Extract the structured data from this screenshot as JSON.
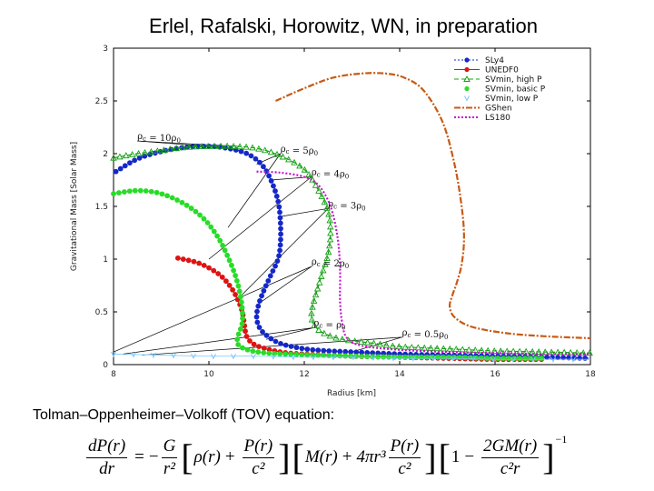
{
  "slide": {
    "title": "Erlel, Rafalski, Horowitz, WN, in preparation",
    "equation_caption": "Tolman–Oppenheimer–Volkoff (TOV) equation:"
  },
  "chart_data": {
    "type": "scatter",
    "title": "",
    "xlabel": "Radius [km]",
    "ylabel": "Gravitational Mass [Solar Mass]",
    "xlim": [
      8,
      18
    ],
    "ylim": [
      0,
      3
    ],
    "xticks": [
      8,
      10,
      12,
      14,
      16,
      18
    ],
    "yticks": [
      0,
      0.5,
      1,
      1.5,
      2,
      2.5,
      3
    ],
    "xtick_labels": [
      "8",
      "10",
      "12",
      "14",
      "16",
      "18"
    ],
    "ytick_labels": [
      "0",
      "0.5",
      "1",
      "1.5",
      "2",
      "2.5",
      "3"
    ],
    "grid": false,
    "legend_position": "top-right",
    "series": [
      {
        "name": "SLy4",
        "color": "#1428c8",
        "marker": "circle-filled",
        "style": "dotted",
        "x": [
          8.05,
          8.5,
          9.0,
          9.5,
          10.0,
          10.4,
          10.8,
          11.1,
          11.3,
          11.45,
          11.5,
          11.5,
          11.45,
          11.3,
          11.15,
          11.05,
          11.0,
          11.05,
          11.2,
          11.5,
          12.0,
          12.5,
          13.0,
          14.0,
          15.0,
          16.0,
          17.0,
          18.0
        ],
        "y": [
          1.83,
          1.95,
          2.02,
          2.06,
          2.07,
          2.05,
          2.0,
          1.9,
          1.75,
          1.55,
          1.35,
          1.15,
          1.0,
          0.85,
          0.7,
          0.58,
          0.46,
          0.36,
          0.28,
          0.2,
          0.15,
          0.13,
          0.12,
          0.1,
          0.09,
          0.08,
          0.07,
          0.06
        ]
      },
      {
        "name": "UNEDF0",
        "color": "#dc1414",
        "marker": "circle-filled",
        "style": "solid",
        "x": [
          9.35,
          9.8,
          10.2,
          10.45,
          10.6,
          10.7,
          10.75,
          10.8,
          11.0,
          11.5,
          12.0,
          13.0,
          14.0,
          15.0,
          16.0,
          17.0
        ],
        "y": [
          1.01,
          0.96,
          0.86,
          0.74,
          0.62,
          0.5,
          0.36,
          0.26,
          0.18,
          0.12,
          0.1,
          0.08,
          0.07,
          0.06,
          0.05,
          0.05
        ]
      },
      {
        "name": "SVmin, high P",
        "color": "#14a014",
        "marker": "triangle-open",
        "style": "dashed",
        "x": [
          8.0,
          8.5,
          9.0,
          9.5,
          10.0,
          10.5,
          11.0,
          11.5,
          12.0,
          12.3,
          12.5,
          12.55,
          12.5,
          12.4,
          12.3,
          12.2,
          12.15,
          12.2,
          12.4,
          12.8,
          13.5,
          14.0,
          15.0,
          16.0,
          17.0,
          18.0
        ],
        "y": [
          1.96,
          2.0,
          2.03,
          2.06,
          2.07,
          2.07,
          2.05,
          1.98,
          1.85,
          1.65,
          1.45,
          1.25,
          1.05,
          0.9,
          0.75,
          0.6,
          0.48,
          0.38,
          0.3,
          0.24,
          0.2,
          0.17,
          0.15,
          0.13,
          0.12,
          0.11
        ]
      },
      {
        "name": "SVmin, basic P",
        "color": "#28dc28",
        "marker": "circle-filled",
        "style": "none",
        "x": [
          8.0,
          8.5,
          9.0,
          9.5,
          9.9,
          10.2,
          10.4,
          10.55,
          10.65,
          10.7,
          10.7,
          10.65,
          10.6,
          10.6,
          10.7,
          10.9,
          11.2,
          11.6,
          12.2,
          13.0,
          14.0,
          15.0,
          16.0,
          17.0
        ],
        "y": [
          1.62,
          1.65,
          1.62,
          1.52,
          1.38,
          1.2,
          1.02,
          0.85,
          0.68,
          0.52,
          0.4,
          0.32,
          0.26,
          0.2,
          0.16,
          0.13,
          0.11,
          0.1,
          0.09,
          0.08,
          0.07,
          0.07,
          0.06,
          0.06
        ]
      },
      {
        "name": "SVmin, low P",
        "color": "#78c8ff",
        "marker": "v",
        "style": "none",
        "x": [
          8.0,
          9.0,
          10.0,
          11.0,
          12.0,
          13.0,
          14.0,
          15.0,
          16.0,
          17.0,
          18.0
        ],
        "y": [
          0.1,
          0.09,
          0.08,
          0.08,
          0.07,
          0.07,
          0.06,
          0.06,
          0.05,
          0.05,
          0.05
        ]
      },
      {
        "name": "GShen",
        "color": "#c85a14",
        "marker": "none",
        "style": "dashdot",
        "x": [
          11.4,
          12.0,
          12.6,
          13.2,
          13.7,
          14.1,
          14.5,
          14.9,
          15.15,
          15.3,
          15.35,
          15.3,
          15.2,
          15.1,
          15.05,
          15.15,
          15.5,
          16.2,
          17.0,
          18.0
        ],
        "y": [
          2.5,
          2.62,
          2.72,
          2.76,
          2.76,
          2.72,
          2.6,
          2.3,
          1.9,
          1.5,
          1.2,
          0.95,
          0.78,
          0.65,
          0.55,
          0.45,
          0.36,
          0.3,
          0.27,
          0.25
        ]
      },
      {
        "name": "LS180",
        "color": "#c814c8",
        "marker": "none",
        "style": "dotted",
        "x": [
          11.0,
          11.5,
          12.0,
          12.3,
          12.55,
          12.7,
          12.75,
          12.75,
          12.8,
          12.9,
          13.2,
          14.0,
          15.0,
          16.0,
          17.0,
          18.0
        ],
        "y": [
          1.83,
          1.82,
          1.78,
          1.7,
          1.5,
          1.2,
          0.9,
          0.6,
          0.38,
          0.25,
          0.18,
          0.14,
          0.12,
          0.11,
          0.1,
          0.1
        ]
      }
    ],
    "density_labels": [
      {
        "label": "ρc = 10ρ0",
        "rho": "ρ",
        "sub_c": "c",
        "eq": " = ",
        "num": "10",
        "rho0": "ρ",
        "sub_0": "0",
        "at": [
          8.5,
          2.12
        ],
        "to": [
          [
            10.0,
            2.07
          ],
          [
            10.6,
            2.07
          ]
        ]
      },
      {
        "label": "ρc = 5ρ0",
        "rho": "ρ",
        "sub_c": "c",
        "eq": " = ",
        "num": "5",
        "rho0": "ρ",
        "sub_0": "0",
        "at": [
          11.5,
          2.0
        ],
        "to": [
          [
            10.4,
            1.3
          ],
          [
            11.0,
            1.9
          ]
        ]
      },
      {
        "label": "ρc = 4ρ0",
        "rho": "ρ",
        "sub_c": "c",
        "eq": " = ",
        "num": "4",
        "rho0": "ρ",
        "sub_0": "0",
        "at": [
          12.15,
          1.78
        ],
        "to": [
          [
            10.0,
            1.0
          ],
          [
            11.3,
            1.75
          ]
        ]
      },
      {
        "label": "ρc = 3ρ0",
        "rho": "ρ",
        "sub_c": "c",
        "eq": " = ",
        "num": "3",
        "rho0": "ρ",
        "sub_0": "0",
        "at": [
          12.5,
          1.48
        ],
        "to": [
          [
            10.6,
            0.62
          ],
          [
            11.45,
            1.4
          ]
        ]
      },
      {
        "label": "ρc = 2ρ0",
        "rho": "ρ",
        "sub_c": "c",
        "eq": " = ",
        "num": "2",
        "rho0": "ρ",
        "sub_0": "0",
        "at": [
          12.15,
          0.93
        ],
        "to": [
          [
            8.0,
            0.12
          ],
          [
            11.05,
            0.58
          ]
        ]
      },
      {
        "label": "ρc = ρ0",
        "rho": "ρ",
        "sub_c": "c",
        "eq": " = ",
        "num": "",
        "rho0": "ρ",
        "sub_0": "0",
        "at": [
          12.2,
          0.35
        ],
        "to": [
          [
            8.2,
            0.1
          ],
          [
            11.2,
            0.24
          ]
        ]
      },
      {
        "label": "ρc = 0.5ρ0",
        "rho": "ρ",
        "sub_c": "c",
        "eq": " = ",
        "num": "0.5",
        "rho0": "ρ",
        "sub_0": "0",
        "at": [
          14.05,
          0.26
        ],
        "to": [
          [
            8.6,
            0.09
          ],
          [
            13.0,
            0.12
          ]
        ]
      }
    ]
  },
  "equation": {
    "lhs_num": "dP(r)",
    "lhs_den": "dr",
    "eq": "=",
    "minus": "−",
    "g_num": "G",
    "g_den": "r²",
    "b1_open": "[",
    "rho_r": "ρ(r)",
    "plus": "+",
    "p_num": "P(r)",
    "p_den": "c²",
    "b1_close": "]",
    "b2_open": "[",
    "m_r": "M(r)",
    "plus2": "+",
    "four_pi": "4πr³",
    "p2_num": "P(r)",
    "p2_den": "c²",
    "b2_close": "]",
    "b3_open": "[",
    "one": "1",
    "minus2": "−",
    "gm_num": "2GM(r)",
    "gm_den": "c²r",
    "b3_close": "]",
    "exponent": "−1"
  }
}
